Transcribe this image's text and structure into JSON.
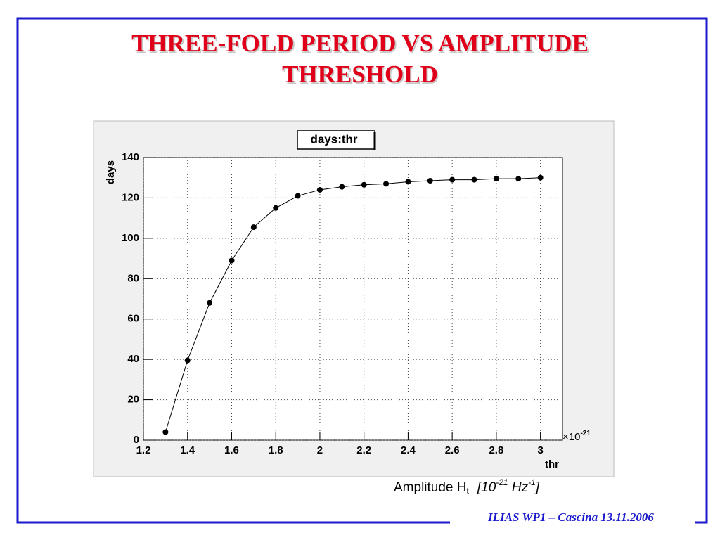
{
  "slide": {
    "title": "THREE-FOLD PERIOD VS AMPLITUDE THRESHOLD",
    "footer": "ILIAS WP1 – Cascina 13.11.2006"
  },
  "chart_data": {
    "type": "line",
    "title": "days:thr",
    "x_label": "thr",
    "y_label": "days",
    "x_multiplier": [
      "×10",
      "-21"
    ],
    "x_caption": [
      "Amplitude H",
      "t",
      "[10",
      "-21",
      " Hz",
      "-1",
      "]"
    ],
    "x": [
      1.3,
      1.4,
      1.5,
      1.6,
      1.7,
      1.8,
      1.9,
      2.0,
      2.1,
      2.2,
      2.3,
      2.4,
      2.5,
      2.6,
      2.7,
      2.8,
      2.9,
      3.0
    ],
    "values": [
      4,
      39.5,
      68,
      89,
      105.5,
      115,
      121,
      124,
      125.5,
      126.5,
      127,
      128,
      128.5,
      129,
      129,
      129.5,
      129.5,
      130
    ],
    "color": "#000000",
    "xlim": [
      1.2,
      3.1
    ],
    "ylim": [
      0,
      140
    ],
    "xticks": [
      1.2,
      1.4,
      1.6,
      1.8,
      2,
      2.2,
      2.4,
      2.6,
      2.8,
      3
    ],
    "yticks": [
      0,
      20,
      40,
      60,
      80,
      100,
      120,
      140
    ],
    "grid": true
  }
}
